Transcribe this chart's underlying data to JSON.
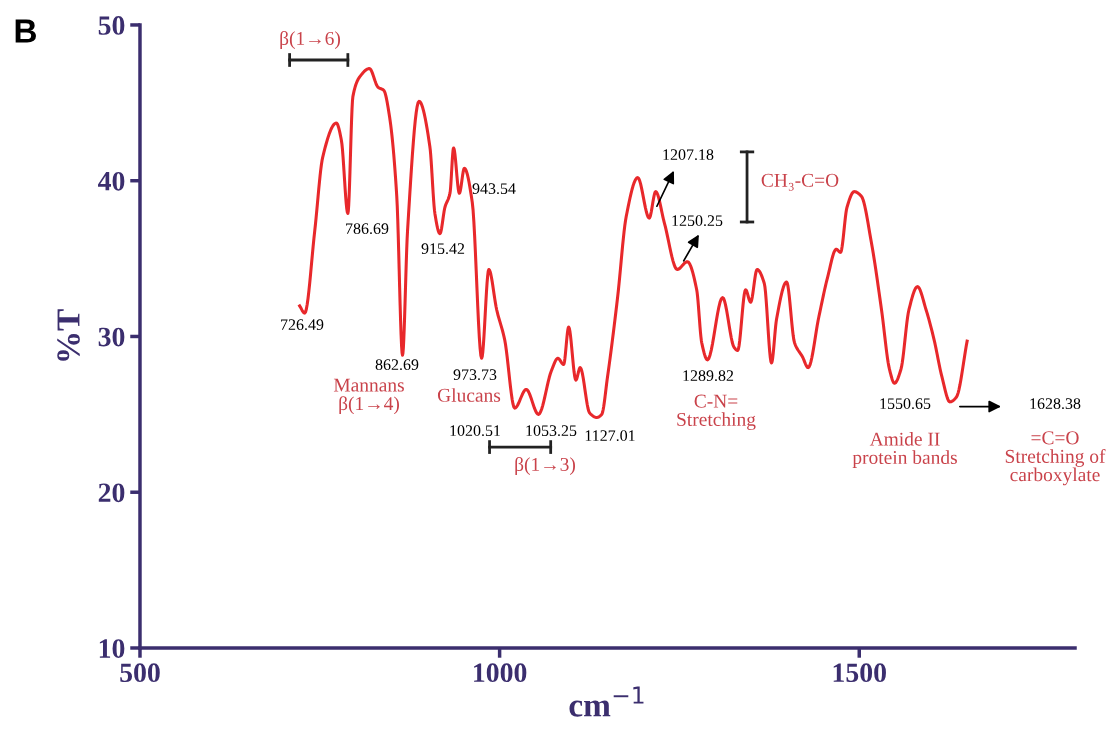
{
  "chart_data": {
    "type": "line",
    "title": "B",
    "xlabel": "cm$^{−1}$",
    "ylabel": "%T",
    "xlim": [
      500,
      1800
    ],
    "xticks": [
      500,
      1000,
      1500
    ],
    "ylim": [
      10,
      50
    ],
    "yticks": [
      10,
      20,
      30,
      40,
      50
    ],
    "grid": false,
    "legend": false,
    "marker": "none",
    "line_style": "solid",
    "series": [
      {
        "color": "#e8282b",
        "x": [
          722,
          729,
          743,
          754,
          773,
          780,
          789,
          796,
          806,
          819,
          831,
          839,
          847,
          857,
          865,
          872,
          888,
          903,
          910,
          917,
          924,
          931,
          936,
          944,
          951,
          962,
          975,
          985,
          996,
          1007,
          1021,
          1037,
          1054,
          1072,
          1081,
          1089,
          1096,
          1106,
          1112,
          1125,
          1135,
          1142,
          1150,
          1164,
          1176,
          1192,
          1208,
          1217,
          1229,
          1247,
          1261,
          1274,
          1281,
          1289,
          1310,
          1326,
          1331,
          1342,
          1349,
          1358,
          1368,
          1378,
          1385,
          1399,
          1410,
          1421,
          1429,
          1444,
          1456,
          1468,
          1474,
          1483,
          1493,
          1503,
          1517,
          1531,
          1542,
          1549,
          1558,
          1569,
          1581,
          1593,
          1604,
          1615,
          1626,
          1635,
          1650
        ],
        "values": [
          31.96,
          31.5,
          36.8,
          41.5,
          43.7,
          42.6,
          37.9,
          45.4,
          46.7,
          47.2,
          46.0,
          45.8,
          44.1,
          39.0,
          28.8,
          36.8,
          45.1,
          42.2,
          37.9,
          36.6,
          38.3,
          39.2,
          42.1,
          39.2,
          40.8,
          38.6,
          28.6,
          34.3,
          31.7,
          29.8,
          25.4,
          26.6,
          25.0,
          27.8,
          28.6,
          28.2,
          30.6,
          27.2,
          28.0,
          25.1,
          24.8,
          25.0,
          27.4,
          32.5,
          37.7,
          40.2,
          37.6,
          39.3,
          37.3,
          34.3,
          34.8,
          33.0,
          29.6,
          28.5,
          32.5,
          29.3,
          29.1,
          33.0,
          32.2,
          34.3,
          33.4,
          28.3,
          31.1,
          33.5,
          29.6,
          28.7,
          28.0,
          31.3,
          33.8,
          35.6,
          35.4,
          38.3,
          39.3,
          39.0,
          36.0,
          31.7,
          27.9,
          27.0,
          27.9,
          31.7,
          33.2,
          31.7,
          29.8,
          27.4,
          25.8,
          26.1,
          29.7
        ]
      }
    ],
    "annotations": [
      "β(1→6)",
      "726.49",
      "786.69",
      "862.69",
      "915.42",
      "943.54",
      "973.73",
      "Mannans\nβ(1→4)",
      "Glucans",
      "1020.51",
      "1053.25",
      "1127.01",
      "β(1→3)",
      "1207.18",
      "1250.25",
      "CH₃-C=O",
      "1289.82",
      "C-N=\nStretching",
      "1550.65",
      "Amide II\nprotein bands",
      "1628.38",
      "=C=O\nStretching of\ncarboxylate"
    ]
  }
}
